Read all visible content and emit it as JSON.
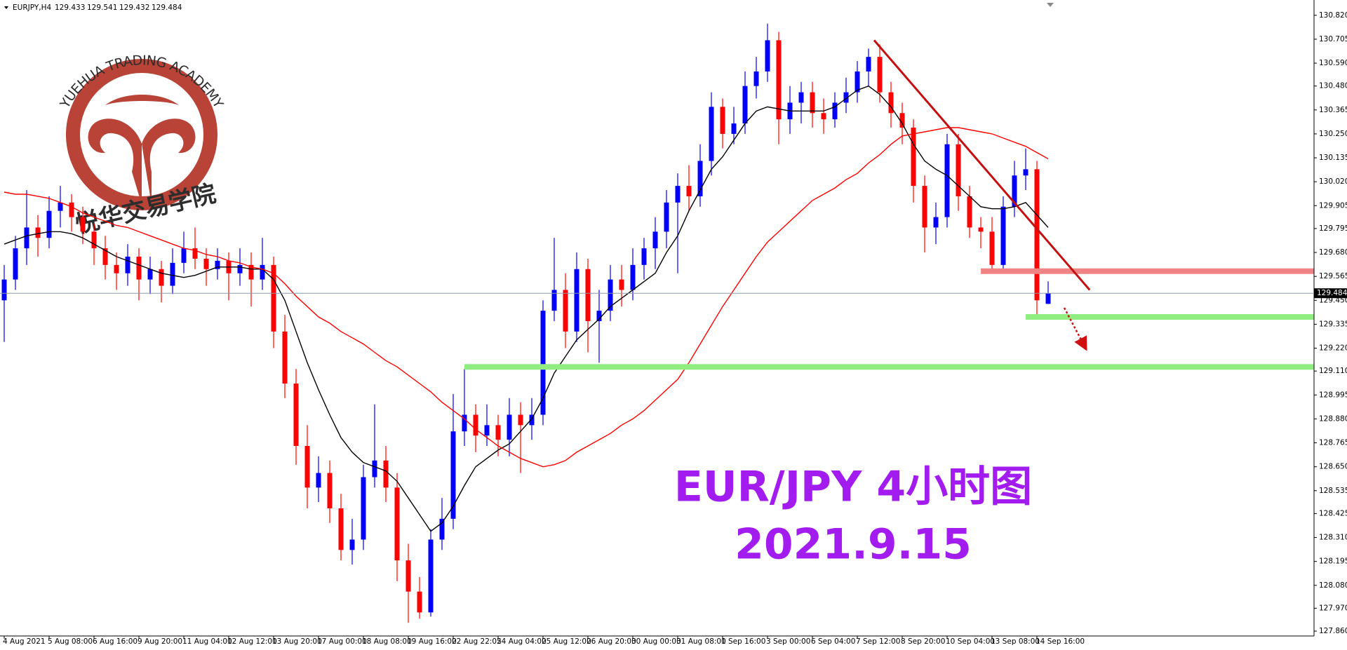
{
  "chart_data": {
    "type": "candlestick",
    "symbol": "EURJPY,H4",
    "logo_text": "YUEHUA TRADING ACADEMY",
    "logo_subtext": "悦华交易学院",
    "title": "EUR/JPY 4小时图",
    "subtitle": "2021.9.15",
    "up_color": "#0000ff",
    "down_color": "#ff0000",
    "categories": [
      "4 Aug 2021",
      null,
      null,
      null,
      "5 Aug 08:00",
      null,
      null,
      null,
      "6 Aug 16:00",
      null,
      null,
      null,
      "9 Aug 20:00",
      null,
      null,
      null,
      "11 Aug 04:00",
      null,
      null,
      null,
      "12 Aug 12:00",
      null,
      null,
      null,
      "13 Aug 20:00",
      null,
      null,
      null,
      "17 Aug 00:00",
      null,
      null,
      null,
      "18 Aug 08:00",
      null,
      null,
      null,
      "19 Aug 16:00",
      null,
      null,
      null,
      "22 Aug 22:05",
      null,
      null,
      null,
      "24 Aug 04:00",
      null,
      null,
      null,
      "25 Aug 12:00",
      null,
      null,
      null,
      "26 Aug 20:00",
      null,
      null,
      null,
      "30 Aug 00:00",
      null,
      null,
      null,
      "31 Aug 08:00",
      null,
      null,
      null,
      "1 Sep 16:00",
      null,
      null,
      null,
      "3 Sep 00:00",
      null,
      null,
      null,
      "6 Sep 04:00",
      null,
      null,
      null,
      "7 Sep 12:00",
      null,
      null,
      null,
      "8 Sep 20:00",
      null,
      null,
      null,
      "10 Sep 04:00",
      null,
      null,
      null,
      "13 Sep 08:00",
      null,
      null,
      null,
      "14 Sep 16:00",
      null
    ],
    "candles": [
      [
        129.45,
        129.62,
        129.25,
        129.55
      ],
      [
        129.55,
        129.76,
        129.5,
        129.7
      ],
      [
        129.7,
        129.98,
        129.62,
        129.8
      ],
      [
        129.8,
        129.86,
        129.66,
        129.75
      ],
      [
        129.75,
        129.95,
        129.7,
        129.88
      ],
      [
        129.88,
        130.0,
        129.8,
        129.92
      ],
      [
        129.92,
        129.96,
        129.78,
        129.85
      ],
      [
        129.85,
        129.9,
        129.72,
        129.78
      ],
      [
        129.78,
        129.82,
        129.62,
        129.7
      ],
      [
        129.7,
        129.76,
        129.55,
        129.62
      ],
      [
        129.62,
        129.68,
        129.5,
        129.58
      ],
      [
        129.58,
        129.72,
        129.52,
        129.66
      ],
      [
        129.66,
        129.7,
        129.45,
        129.55
      ],
      [
        129.55,
        129.66,
        129.48,
        129.6
      ],
      [
        129.6,
        129.64,
        129.44,
        129.52
      ],
      [
        129.52,
        129.7,
        129.48,
        129.63
      ],
      [
        129.63,
        129.78,
        129.58,
        129.7
      ],
      [
        129.7,
        129.8,
        129.6,
        129.65
      ],
      [
        129.65,
        129.7,
        129.52,
        129.6
      ],
      [
        129.6,
        129.7,
        129.55,
        129.64
      ],
      [
        129.64,
        129.68,
        129.45,
        129.58
      ],
      [
        129.58,
        129.7,
        129.52,
        129.62
      ],
      [
        129.62,
        129.68,
        129.42,
        129.55
      ],
      [
        129.55,
        129.75,
        129.5,
        129.62
      ],
      [
        129.62,
        129.66,
        129.22,
        129.3
      ],
      [
        129.3,
        129.38,
        128.98,
        129.05
      ],
      [
        129.05,
        129.12,
        128.66,
        128.75
      ],
      [
        128.75,
        128.85,
        128.45,
        128.55
      ],
      [
        128.55,
        128.7,
        128.48,
        128.62
      ],
      [
        128.62,
        128.68,
        128.38,
        128.45
      ],
      [
        128.45,
        128.52,
        128.2,
        128.25
      ],
      [
        128.25,
        128.4,
        128.18,
        128.3
      ],
      [
        128.3,
        128.66,
        128.25,
        128.6
      ],
      [
        128.6,
        128.95,
        128.55,
        128.68
      ],
      [
        128.68,
        128.75,
        128.48,
        128.55
      ],
      [
        128.55,
        128.62,
        128.1,
        128.2
      ],
      [
        128.2,
        128.28,
        127.9,
        128.05
      ],
      [
        128.05,
        128.12,
        127.92,
        127.95
      ],
      [
        127.95,
        128.35,
        127.93,
        128.3
      ],
      [
        128.3,
        128.5,
        128.25,
        128.4
      ],
      [
        128.4,
        129.0,
        128.35,
        128.82
      ],
      [
        128.82,
        129.12,
        128.75,
        128.9
      ],
      [
        128.9,
        128.95,
        128.72,
        128.8
      ],
      [
        128.8,
        128.95,
        128.75,
        128.85
      ],
      [
        128.85,
        128.9,
        128.7,
        128.78
      ],
      [
        128.78,
        128.98,
        128.7,
        128.9
      ],
      [
        128.9,
        128.96,
        128.62,
        128.85
      ],
      [
        128.85,
        128.98,
        128.78,
        128.9
      ],
      [
        128.9,
        129.45,
        128.85,
        129.4
      ],
      [
        129.4,
        129.75,
        129.35,
        129.5
      ],
      [
        129.5,
        129.58,
        129.22,
        129.3
      ],
      [
        129.3,
        129.68,
        129.25,
        129.6
      ],
      [
        129.6,
        129.65,
        129.2,
        129.35
      ],
      [
        129.35,
        129.5,
        129.15,
        129.4
      ],
      [
        129.4,
        129.62,
        129.35,
        129.55
      ],
      [
        129.55,
        129.62,
        129.42,
        129.5
      ],
      [
        129.5,
        129.7,
        129.45,
        129.62
      ],
      [
        129.62,
        129.75,
        129.55,
        129.7
      ],
      [
        129.7,
        129.85,
        129.6,
        129.78
      ],
      [
        129.78,
        129.98,
        129.7,
        129.92
      ],
      [
        129.92,
        130.06,
        129.58,
        130.0
      ],
      [
        130.0,
        130.1,
        129.88,
        129.95
      ],
      [
        129.95,
        130.2,
        129.9,
        130.12
      ],
      [
        130.12,
        130.45,
        130.05,
        130.38
      ],
      [
        130.38,
        130.42,
        130.18,
        130.25
      ],
      [
        130.25,
        130.38,
        130.2,
        130.3
      ],
      [
        130.3,
        130.55,
        130.25,
        130.48
      ],
      [
        130.48,
        130.62,
        130.42,
        130.55
      ],
      [
        130.55,
        130.78,
        130.5,
        130.7
      ],
      [
        130.7,
        130.74,
        130.2,
        130.32
      ],
      [
        130.32,
        130.48,
        130.25,
        130.4
      ],
      [
        130.4,
        130.5,
        130.3,
        130.45
      ],
      [
        130.45,
        130.5,
        130.28,
        130.35
      ],
      [
        130.35,
        130.42,
        130.25,
        130.32
      ],
      [
        130.32,
        130.45,
        130.28,
        130.4
      ],
      [
        130.4,
        130.52,
        130.35,
        130.45
      ],
      [
        130.45,
        130.6,
        130.4,
        130.55
      ],
      [
        130.55,
        130.66,
        130.48,
        130.62
      ],
      [
        130.62,
        130.68,
        130.4,
        130.45
      ],
      [
        130.45,
        130.5,
        130.28,
        130.35
      ],
      [
        130.35,
        130.4,
        130.2,
        130.28
      ],
      [
        130.28,
        130.32,
        129.92,
        130.0
      ],
      [
        130.0,
        130.05,
        129.68,
        129.8
      ],
      [
        129.8,
        129.92,
        129.72,
        129.85
      ],
      [
        129.85,
        130.25,
        129.8,
        130.2
      ],
      [
        130.2,
        130.25,
        129.88,
        129.95
      ],
      [
        129.95,
        130.0,
        129.75,
        129.8
      ],
      [
        129.8,
        129.85,
        129.7,
        129.78
      ],
      [
        129.78,
        129.85,
        129.58,
        129.62
      ],
      [
        129.62,
        129.95,
        129.58,
        129.9
      ],
      [
        129.9,
        130.12,
        129.85,
        130.05
      ],
      [
        130.05,
        130.18,
        129.98,
        130.08
      ],
      [
        130.08,
        130.12,
        129.36,
        129.45
      ],
      [
        129.433,
        129.541,
        129.432,
        129.484
      ]
    ],
    "series": [
      {
        "color": "#000000",
        "values": [
          129.72,
          129.74,
          129.76,
          129.77,
          129.78,
          129.78,
          129.77,
          129.75,
          129.72,
          129.69,
          129.66,
          129.64,
          129.62,
          129.6,
          129.58,
          129.57,
          129.56,
          129.57,
          129.59,
          129.61,
          129.61,
          129.61,
          129.6,
          129.6,
          129.55,
          129.45,
          129.3,
          129.15,
          129.02,
          128.9,
          128.79,
          128.72,
          128.67,
          128.65,
          128.63,
          128.58,
          128.5,
          128.42,
          128.34,
          128.38,
          128.46,
          128.56,
          128.65,
          128.69,
          128.73,
          128.76,
          128.82,
          128.88,
          128.98,
          129.1,
          129.18,
          129.26,
          129.31,
          129.36,
          129.42,
          129.46,
          129.5,
          129.54,
          129.58,
          129.68,
          129.76,
          129.88,
          129.98,
          130.08,
          130.14,
          130.22,
          130.3,
          130.36,
          130.38,
          130.37,
          130.36,
          130.36,
          130.36,
          130.36,
          130.38,
          130.42,
          130.46,
          130.48,
          130.44,
          130.38,
          130.3,
          130.2,
          130.12,
          130.08,
          130.05,
          130.0,
          129.95,
          129.9,
          129.89,
          129.89,
          129.9,
          129.92,
          129.86,
          129.8
        ]
      },
      {
        "color": "#ff0000",
        "values": [
          129.97,
          129.96,
          129.96,
          129.95,
          129.94,
          129.92,
          129.9,
          129.87,
          129.85,
          129.83,
          129.81,
          129.8,
          129.78,
          129.76,
          129.74,
          129.72,
          129.7,
          129.69,
          129.67,
          129.66,
          129.64,
          129.63,
          129.61,
          129.6,
          129.58,
          129.53,
          129.47,
          129.42,
          129.37,
          129.34,
          129.3,
          129.27,
          129.24,
          129.2,
          129.16,
          129.13,
          129.09,
          129.05,
          129.01,
          128.96,
          128.92,
          128.88,
          128.83,
          128.79,
          128.75,
          128.72,
          128.69,
          128.67,
          128.65,
          128.66,
          128.68,
          128.72,
          128.75,
          128.78,
          128.81,
          128.85,
          128.88,
          128.92,
          128.97,
          129.02,
          129.07,
          129.15,
          129.24,
          129.33,
          129.42,
          129.5,
          129.58,
          129.66,
          129.73,
          129.78,
          129.83,
          129.88,
          129.93,
          129.96,
          129.99,
          130.03,
          130.06,
          130.11,
          130.15,
          130.2,
          130.24,
          130.25,
          130.26,
          130.27,
          130.28,
          130.28,
          130.27,
          130.26,
          130.25,
          130.23,
          130.21,
          130.19,
          130.16,
          130.13
        ]
      }
    ],
    "levels": [
      {
        "value": 129.59,
        "x_start": 87,
        "color": "#f08484"
      },
      {
        "value": 129.37,
        "x_start": 91,
        "color": "#90ee80"
      },
      {
        "value": 129.13,
        "x_start": 41,
        "color": "#90ee80"
      }
    ],
    "trendline": {
      "x": [
        77.5,
        96.7
      ],
      "y": [
        130.7,
        129.5
      ],
      "color": "#c41010"
    },
    "ylim": [
      127.84,
      130.88
    ],
    "yticks": [
      {
        "value": 130.82,
        "label": "130.820"
      },
      130.705,
      {
        "value": 130.59,
        "label": "130.590"
      },
      {
        "value": 130.48,
        "label": "130.480"
      },
      130.365,
      {
        "value": 130.25,
        "label": "130.250"
      },
      130.135,
      {
        "value": 130.02,
        "label": "130.020"
      },
      129.905,
      129.795,
      {
        "value": 129.68,
        "label": "129.680"
      },
      129.565,
      {
        "value": 129.45,
        "label": "129.450"
      },
      129.335,
      {
        "value": 129.22,
        "label": "129.220"
      },
      {
        "value": 129.11,
        "label": "129.110"
      },
      128.995,
      {
        "value": 128.88,
        "label": "128.880"
      },
      128.765,
      {
        "value": 128.65,
        "label": "128.650"
      },
      128.535,
      128.425,
      {
        "value": 128.31,
        "label": "128.310"
      },
      128.195,
      {
        "value": 128.08,
        "label": "128.080"
      },
      {
        "value": 127.97,
        "label": "127.970"
      },
      {
        "value": 127.86,
        "label": "127.860"
      }
    ]
  }
}
